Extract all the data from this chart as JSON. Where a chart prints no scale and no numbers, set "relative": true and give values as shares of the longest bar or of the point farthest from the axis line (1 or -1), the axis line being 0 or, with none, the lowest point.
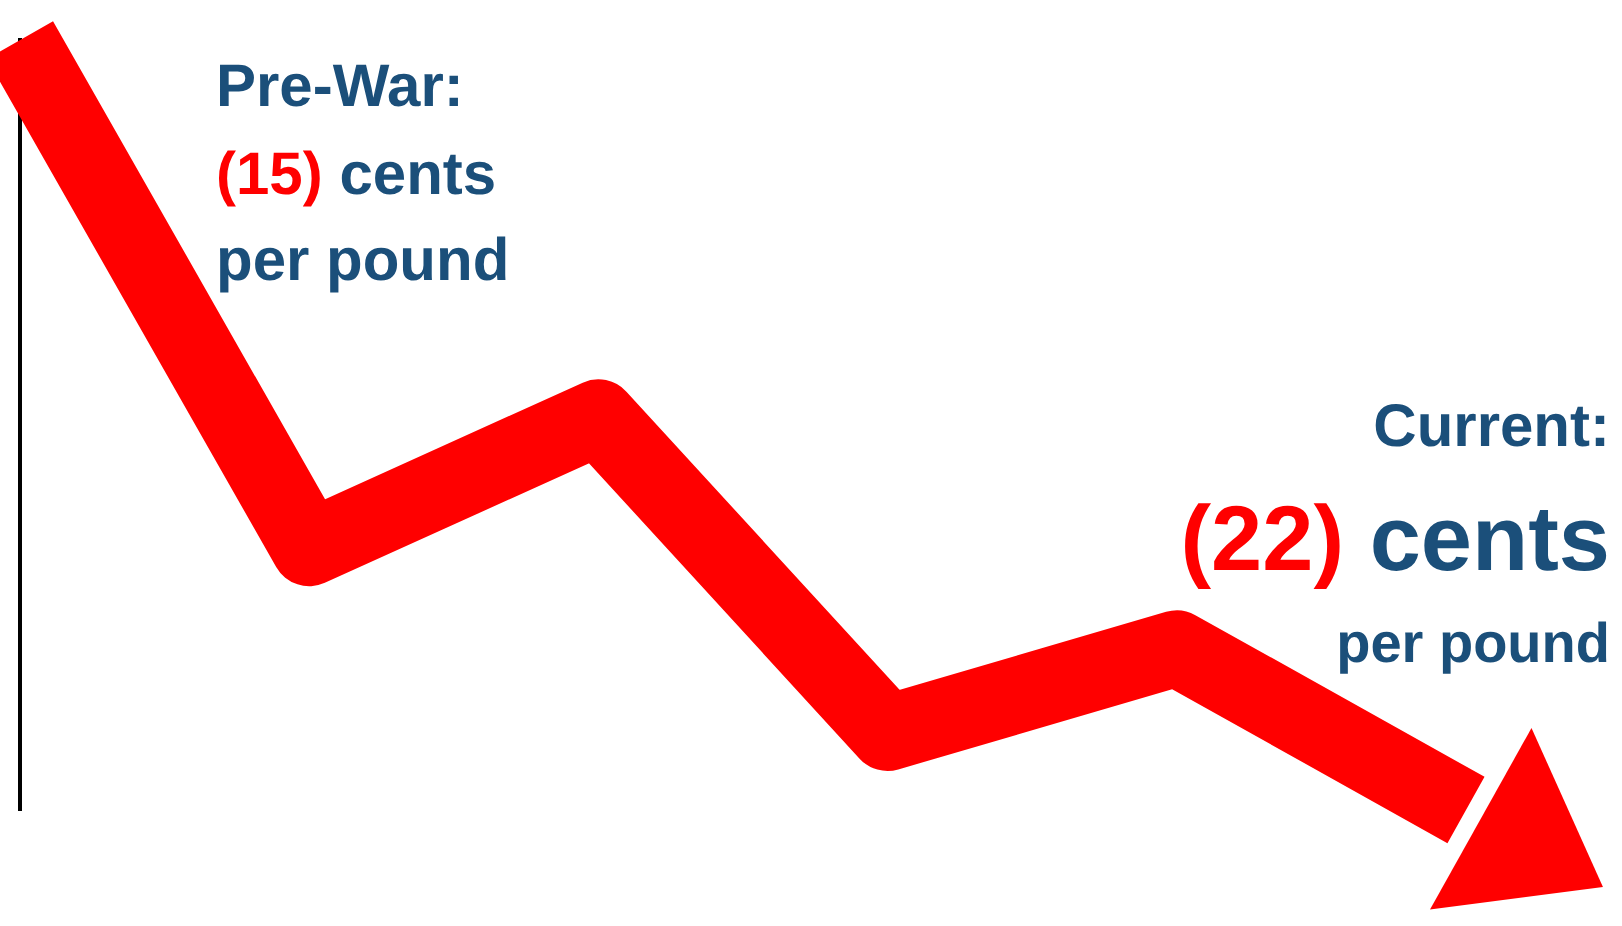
{
  "chart_data": {
    "type": "line",
    "relative": true,
    "categories": [
      null,
      null,
      null,
      null,
      null,
      null
    ],
    "series": [
      {
        "color": "#ff0000",
        "values": [
          1,
          0.34,
          0.51,
          0.1,
          0.21,
          0
        ]
      }
    ],
    "annotations": [
      "Pre-War:\n(15) cents\nper pound",
      "Current:\n(22) cents\nper pound"
    ],
    "legend": false,
    "grid": false
  }
}
